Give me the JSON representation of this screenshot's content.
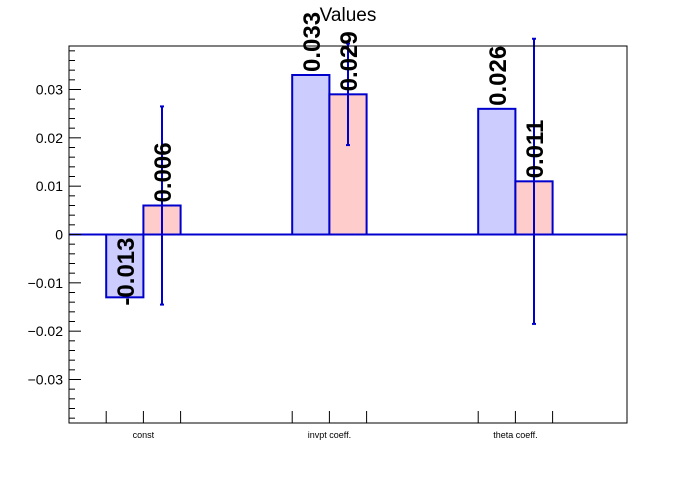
{
  "chart_data": {
    "type": "bar",
    "title": "Values",
    "xlabel": "",
    "ylabel": "",
    "categories": [
      "const",
      "invpt coeff.",
      "theta coeff."
    ],
    "ylim": [
      -0.039,
      0.039
    ],
    "yticks": [
      -0.03,
      -0.02,
      -0.01,
      0,
      0.01,
      0.02,
      0.03
    ],
    "ytick_labels": [
      "−0.03",
      "−0.02",
      "−0.01",
      "0",
      "0.01",
      "0.02",
      "0.03"
    ],
    "grid": false,
    "series": [
      {
        "values": [
          -0.013,
          0.033,
          0.026
        ],
        "labels": [
          "-0.013",
          "0.033",
          "0.026"
        ],
        "errors": [
          0,
          0,
          0
        ],
        "fill": "#ccccff",
        "stroke": "#0000cc"
      },
      {
        "values": [
          0.006,
          0.029,
          0.011
        ],
        "labels": [
          "0.006",
          "0.029",
          "0.011"
        ],
        "errors": [
          0.0205,
          0.0105,
          0.0295
        ],
        "fill": "#ffcccc",
        "stroke": "#0000cc"
      }
    ],
    "colors": {
      "axis": "#000000",
      "zero_line": "#0000cc",
      "error_bar": "#0000cc"
    }
  }
}
